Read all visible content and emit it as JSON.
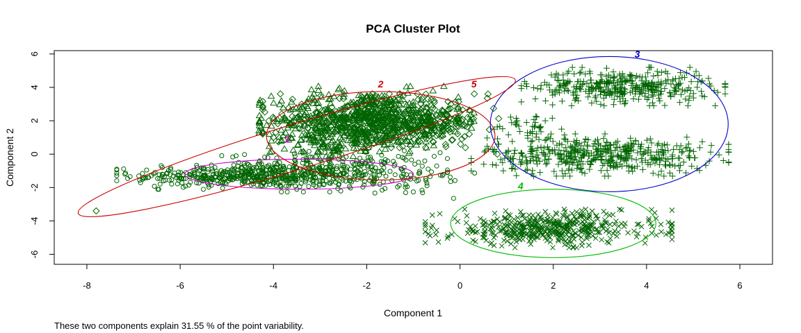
{
  "chart_data": {
    "type": "scatter",
    "title": "PCA Cluster Plot",
    "xlabel": "Component 1",
    "ylabel": "Component 2",
    "xlim": [
      -8.7,
      6.7
    ],
    "ylim": [
      -6.6,
      6.2
    ],
    "xticks": [
      -8,
      -6,
      -4,
      -2,
      0,
      2,
      4,
      6
    ],
    "yticks": [
      -6,
      -4,
      -2,
      0,
      2,
      4,
      6
    ],
    "grid": false,
    "footnote": "These two components explain 31.55 % of the point variability.",
    "point_color": "#006400",
    "clusters": [
      {
        "id": "1",
        "marker": "circle",
        "label_color": "#cc00cc",
        "ellipse_color": "#cc00cc",
        "label_pos": [
          -3.7,
          0.9
        ],
        "center": [
          -3.45,
          -1.2
        ],
        "radius": [
          2.45,
          0.9
        ],
        "rotation_deg": 0,
        "points": [
          {
            "center": [
              -4.6,
              -1.3
            ],
            "spread": [
              1.2,
              0.35
            ],
            "n": 420
          },
          {
            "center": [
              -2.8,
              -1.0
            ],
            "spread": [
              1.1,
              0.55
            ],
            "n": 260
          },
          {
            "center": [
              -1.5,
              -1.5
            ],
            "spread": [
              1.0,
              0.5
            ],
            "n": 60
          }
        ]
      },
      {
        "id": "2",
        "marker": "triangle",
        "label_color": "#cc0000",
        "ellipse_color": "#cc0000",
        "label_pos": [
          -1.7,
          4.2
        ],
        "center": [
          -1.7,
          1.1
        ],
        "radius": [
          2.45,
          2.65
        ],
        "rotation_deg": 0,
        "points": [
          {
            "center": [
              -2.0,
              2.1
            ],
            "spread": [
              1.0,
              0.85
            ],
            "n": 520
          },
          {
            "center": [
              -2.7,
              0.8
            ],
            "spread": [
              0.7,
              0.6
            ],
            "n": 120
          }
        ]
      },
      {
        "id": "3",
        "marker": "plus",
        "label_color": "#0000cc",
        "ellipse_color": "#0000cc",
        "label_pos": [
          3.8,
          6.0
        ],
        "center": [
          3.2,
          1.8
        ],
        "radius": [
          2.55,
          4.05
        ],
        "rotation_deg": 0,
        "points": [
          {
            "center": [
              3.5,
              4.05
            ],
            "spread": [
              0.95,
              0.5
            ],
            "n": 380
          },
          {
            "center": [
              3.0,
              -0.05
            ],
            "spread": [
              1.2,
              0.55
            ],
            "n": 480
          },
          {
            "center": [
              1.5,
              1.6
            ],
            "spread": [
              0.45,
              0.45
            ],
            "n": 40
          }
        ]
      },
      {
        "id": "4",
        "marker": "x",
        "label_color": "#00bb00",
        "ellipse_color": "#00bb00",
        "label_pos": [
          1.3,
          -1.9
        ],
        "center": [
          2.0,
          -4.15
        ],
        "radius": [
          2.2,
          2.05
        ],
        "rotation_deg": 0,
        "points": [
          {
            "center": [
              1.9,
              -4.45
            ],
            "spread": [
              1.15,
              0.5
            ],
            "n": 460
          }
        ]
      },
      {
        "id": "5",
        "marker": "diamond",
        "label_color": "#cc0000",
        "ellipse_color": "#cc0000",
        "label_pos": [
          0.3,
          4.2
        ],
        "center": [
          -3.5,
          0.45
        ],
        "radius": [
          4.9,
          1.35
        ],
        "rotation_deg": -17,
        "points": [
          {
            "center": [
              -1.7,
              2.0
            ],
            "spread": [
              1.1,
              0.7
            ],
            "n": 380
          },
          {
            "center": [
              -0.5,
              1.6
            ],
            "spread": [
              0.5,
              0.5
            ],
            "n": 60
          }
        ],
        "extra_points": [
          [
            -7.8,
            -3.4
          ],
          [
            0.6,
            3.6
          ],
          [
            0.8,
            0.0
          ],
          [
            -4.0,
            1.0
          ]
        ]
      }
    ]
  }
}
